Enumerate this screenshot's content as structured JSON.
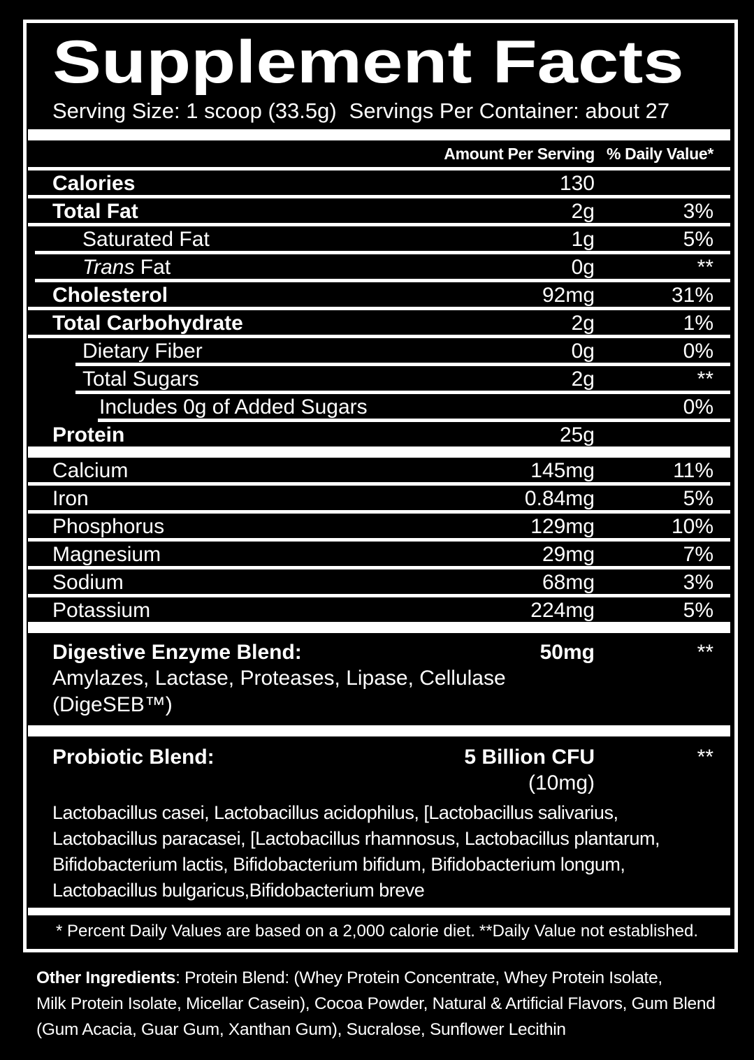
{
  "panel": {
    "title": "Supplement Facts",
    "serving_size": "Serving Size: 1 scoop (33.5g)",
    "servings_per_container": "Servings Per Container: about 27",
    "columns": {
      "amount": "Amount Per Serving",
      "daily_value": "% Daily Value*"
    },
    "nutrients": [
      {
        "name": "Calories",
        "amount": "130",
        "dv": ""
      },
      {
        "name": "Total Fat",
        "amount": "2g",
        "dv": "3%"
      },
      {
        "name": "Saturated Fat",
        "amount": "1g",
        "dv": "5%"
      },
      {
        "name_italic": "Trans",
        "name": " Fat",
        "amount": "0g",
        "dv": "**"
      },
      {
        "name": "Cholesterol",
        "amount": "92mg",
        "dv": "31%"
      },
      {
        "name": "Total Carbohydrate",
        "amount": "2g",
        "dv": "1%"
      },
      {
        "name": "Dietary Fiber",
        "amount": "0g",
        "dv": "0%"
      },
      {
        "name": "Total Sugars",
        "amount": "2g",
        "dv": "**"
      },
      {
        "name": "Includes 0g of Added Sugars",
        "amount": "",
        "dv": "0%"
      },
      {
        "name": "Protein",
        "amount": "25g",
        "dv": ""
      }
    ],
    "minerals": [
      {
        "name": "Calcium",
        "amount": "145mg",
        "dv": "11%"
      },
      {
        "name": "Iron",
        "amount": "0.84mg",
        "dv": "5%"
      },
      {
        "name": "Phosphorus",
        "amount": "129mg",
        "dv": "10%"
      },
      {
        "name": "Magnesium",
        "amount": "29mg",
        "dv": "7%"
      },
      {
        "name": "Sodium",
        "amount": "68mg",
        "dv": "3%"
      },
      {
        "name": "Potassium",
        "amount": "224mg",
        "dv": "5%"
      }
    ],
    "digestive_blend": {
      "name": "Digestive Enzyme Blend:",
      "amount": "50mg",
      "dv": "**",
      "ingredients": "Amylazes, Lactase, Proteases, Lipase, Cellulase",
      "trademark": "(DigeSEB™)"
    },
    "probiotic_blend": {
      "name": "Probiotic Blend:",
      "amount": "5 Billion CFU",
      "amount_mg": "(10mg)",
      "dv": "**",
      "species_lines": [
        "Lactobacillus casei, Lactobacillus acidophilus, [Lactobacillus salivarius,",
        "Lactobacillus paracasei, [Lactobacillus rhamnosus, Lactobacillus plantarum,",
        "Bifidobacterium lactis, Bifidobacterium bifidum, Bifidobacterium longum,",
        "Lactobacillus bulgaricus,Bifidobacterium breve"
      ]
    },
    "footnotes": {
      "daily_value": "* Percent Daily Values are based on a 2,000 calorie diet.",
      "not_established": "**Daily Value not established."
    }
  },
  "other_ingredients": {
    "label": "Other Ingredients",
    "line1_rest": ": Protein Blend: (Whey Protein Concentrate, Whey Protein Isolate,",
    "line2": "Milk Protein Isolate, Micellar Casein), Cocoa Powder, Natural & Artificial Flavors, Gum Blend",
    "line3": "(Gum Acacia, Guar Gum, Xanthan Gum), Sucralose, Sunflower Lecithin"
  },
  "colors": {
    "background": "#000000",
    "foreground": "#ffffff"
  }
}
